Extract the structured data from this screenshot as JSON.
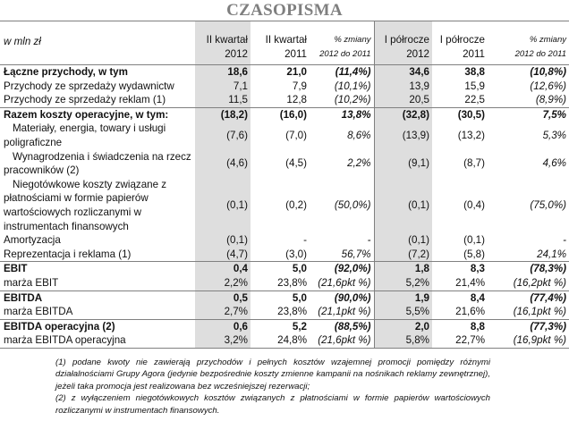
{
  "title": "CZASOPISMA",
  "header": {
    "unit": "w mln zł",
    "columns": [
      {
        "line1": "II kwartał",
        "line2": "2012"
      },
      {
        "line1": "II kwartał",
        "line2": "2011"
      },
      {
        "line1": "% zmiany",
        "line2": "2012 do 2011"
      },
      {
        "line1": "I półrocze",
        "line2": "2012"
      },
      {
        "line1": "I półrocze",
        "line2": "2011"
      },
      {
        "line1": "% zmiany",
        "line2": "2012 do 2011"
      }
    ]
  },
  "rows": [
    {
      "label": "Łączne przychody, w tym",
      "values": [
        "18,6",
        "21,0",
        "(11,4%)",
        "34,6",
        "38,8",
        "(10,8%)"
      ],
      "bold": true
    },
    {
      "label": "Przychody ze sprzedaży wydawnictw",
      "values": [
        "7,1",
        "7,9",
        "(10,1%)",
        "13,9",
        "15,9",
        "(12,6%)"
      ],
      "indent": true
    },
    {
      "label": "Przychody ze sprzedaży reklam (1)",
      "values": [
        "11,5",
        "12,8",
        "(10,2%)",
        "20,5",
        "22,5",
        "(8,9%)"
      ],
      "indent": true
    },
    {
      "label": "Razem koszty operacyjne, w tym:",
      "values": [
        "(18,2)",
        "(16,0)",
        "13,8%",
        "(32,8)",
        "(30,5)",
        "7,5%"
      ],
      "bold": true,
      "sep": true
    },
    {
      "label": "Materiały, energia, towary i usługi poligraficzne",
      "values": [
        "(7,6)",
        "(7,0)",
        "8,6%",
        "(13,9)",
        "(13,2)",
        "5,3%"
      ],
      "wrap": true
    },
    {
      "label": "Wynagrodzenia i świadczenia na rzecz pracowników (2)",
      "values": [
        "(4,6)",
        "(4,5)",
        "2,2%",
        "(9,1)",
        "(8,7)",
        "4,6%"
      ],
      "wrap": true
    },
    {
      "label": "Niegotówkowe koszty związane z płatnościami w formie papierów wartościowych rozliczanymi w instrumentach finansowych",
      "values": [
        "(0,1)",
        "(0,2)",
        "(50,0%)",
        "(0,1)",
        "(0,4)",
        "(75,0%)"
      ],
      "wrap": true
    },
    {
      "label": "Amortyzacja",
      "values": [
        "(0,1)",
        "-",
        "-",
        "(0,1)",
        "(0,1)",
        "-"
      ],
      "indent": true
    },
    {
      "label": "Reprezentacja i reklama (1)",
      "values": [
        "(4,7)",
        "(3,0)",
        "56,7%",
        "(7,2)",
        "(5,8)",
        "24,1%"
      ],
      "indent": true
    },
    {
      "label": "EBIT",
      "values": [
        "0,4",
        "5,0",
        "(92,0%)",
        "1,8",
        "8,3",
        "(78,3%)"
      ],
      "bold": true,
      "sep": true
    },
    {
      "label": "marża EBIT",
      "values": [
        "2,2%",
        "23,8%",
        "(21,6pkt %)",
        "5,2%",
        "21,4%",
        "(16,2pkt %)"
      ]
    },
    {
      "label": "EBITDA",
      "values": [
        "0,5",
        "5,0",
        "(90,0%)",
        "1,9",
        "8,4",
        "(77,4%)"
      ],
      "bold": true,
      "sep": true
    },
    {
      "label": "marża EBITDA",
      "values": [
        "2,7%",
        "23,8%",
        "(21,1pkt %)",
        "5,5%",
        "21,6%",
        "(16,1pkt %)"
      ]
    },
    {
      "label": "EBITDA operacyjna (2)",
      "values": [
        "0,6",
        "5,2",
        "(88,5%)",
        "2,0",
        "8,8",
        "(77,3%)"
      ],
      "bold": true,
      "sep": true
    },
    {
      "label": "marża EBITDA operacyjna",
      "values": [
        "3,2%",
        "24,8%",
        "(21,6pkt %)",
        "5,8%",
        "22,7%",
        "(16,9pkt %)"
      ],
      "last": true
    }
  ],
  "footnotes": [
    "(1) podane kwoty nie zawierają przychodów i pełnych kosztów wzajemnej promocji pomiędzy różnymi działalnościami Grupy Agora (jedynie bezpośrednie koszty zmienne kampanii na nośnikach reklamy zewnętrznej), jeżeli taka promocja jest realizowana bez wcześniejszej rezerwacji;",
    "(2) z wyłączeniem niegotówkowych kosztów związanych z płatnościami w formie papierów wartościowych rozliczanymi w instrumentach finansowych."
  ],
  "colors": {
    "title": "#7f7f7f",
    "shade": "#dedede",
    "rule": "#808080"
  }
}
